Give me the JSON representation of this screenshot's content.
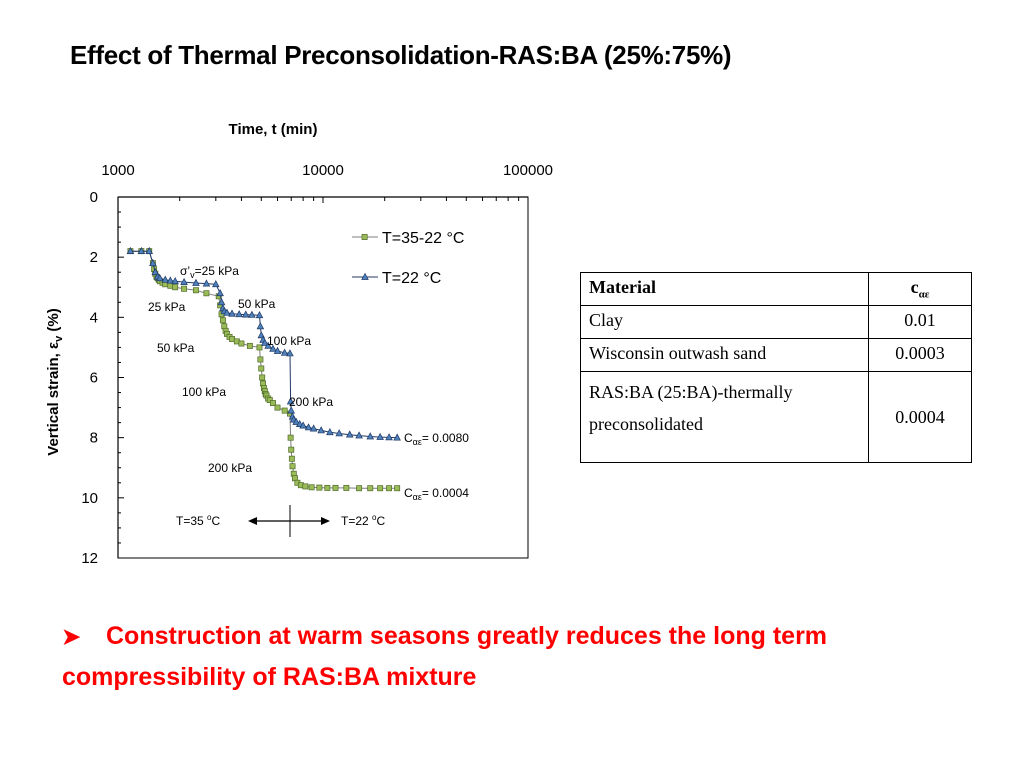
{
  "slide": {
    "title": "Effect of Thermal Preconsolidation-RAS:BA (25%:75%)",
    "bullet_icon": "arrowhead-bullet-icon",
    "bullet_text": "Construction at warm seasons greatly reduces the long term compressibility of RAS:BA mixture",
    "bullet_color": "#ff0000"
  },
  "table": {
    "headers": [
      "Material",
      "c"
    ],
    "header_subscript": "αε",
    "rows": [
      [
        "Clay",
        "0.01"
      ],
      [
        "Wisconsin outwash sand",
        "0.0003"
      ],
      [
        "RAS:BA (25:BA)-thermally preconsolidated",
        "0.0004"
      ]
    ]
  },
  "chart_data": {
    "type": "scatter",
    "xlabel": "Time, t (min)",
    "ylabel": "Vertical strain, εv (%)",
    "xscale": "log",
    "xlim": [
      1000,
      100000
    ],
    "ylim": [
      0,
      12
    ],
    "y_reversed": true,
    "x_axis_position": "top",
    "x_ticks": [
      "1000",
      "10000",
      "100000"
    ],
    "y_ticks": [
      "0",
      "2",
      "4",
      "6",
      "8",
      "10",
      "12"
    ],
    "grid": false,
    "legend_position": "top-right",
    "series": [
      {
        "name": "T=35-22 °C",
        "marker": "square",
        "color": "#9bbb59",
        "line_color": "#7f7f7f",
        "x": [
          1150,
          1300,
          1420,
          1480,
          1500,
          1520,
          1540,
          1560,
          1580,
          1600,
          1650,
          1700,
          1800,
          1900,
          2100,
          2400,
          2700,
          3100,
          3150,
          3200,
          3250,
          3300,
          3350,
          3400,
          3500,
          3600,
          3800,
          4000,
          4400,
          4900,
          4950,
          5000,
          5050,
          5100,
          5150,
          5200,
          5250,
          5300,
          5400,
          5500,
          5700,
          6000,
          6500,
          6900,
          6950,
          7000,
          7050,
          7100,
          7200,
          7300,
          7500,
          7800,
          8200,
          8800,
          9600,
          10500,
          11500,
          13000,
          15000,
          17000,
          19000,
          21000,
          23000
        ],
        "y": [
          1.8,
          1.8,
          1.8,
          2.2,
          2.4,
          2.55,
          2.65,
          2.7,
          2.75,
          2.8,
          2.85,
          2.9,
          2.95,
          3.0,
          3.05,
          3.1,
          3.2,
          3.3,
          3.6,
          3.9,
          4.1,
          4.3,
          4.45,
          4.55,
          4.65,
          4.72,
          4.8,
          4.87,
          4.95,
          5.0,
          5.4,
          5.7,
          6.0,
          6.2,
          6.35,
          6.45,
          6.55,
          6.6,
          6.7,
          6.75,
          6.85,
          7.0,
          7.1,
          7.2,
          8.0,
          8.4,
          8.7,
          8.95,
          9.2,
          9.35,
          9.5,
          9.58,
          9.62,
          9.65,
          9.66,
          9.67,
          9.67,
          9.67,
          9.68,
          9.68,
          9.68,
          9.68,
          9.68
        ]
      },
      {
        "name": "T=22 °C",
        "marker": "triangle",
        "color": "#4f81bd",
        "line_color": "#1f3864",
        "x": [
          1150,
          1300,
          1420,
          1480,
          1520,
          1560,
          1600,
          1700,
          1800,
          1900,
          2100,
          2400,
          2700,
          3000,
          3150,
          3200,
          3250,
          3300,
          3400,
          3600,
          3900,
          4200,
          4500,
          4900,
          4950,
          5000,
          5100,
          5200,
          5400,
          5700,
          6000,
          6500,
          6900,
          6950,
          7000,
          7100,
          7200,
          7400,
          7700,
          8000,
          8500,
          9000,
          9800,
          10800,
          12000,
          13500,
          15000,
          17000,
          19000,
          21000,
          23000
        ],
        "y": [
          1.8,
          1.8,
          1.8,
          2.2,
          2.5,
          2.65,
          2.7,
          2.75,
          2.78,
          2.8,
          2.83,
          2.86,
          2.88,
          2.9,
          3.2,
          3.5,
          3.7,
          3.8,
          3.85,
          3.88,
          3.9,
          3.91,
          3.92,
          3.93,
          4.3,
          4.6,
          4.75,
          4.85,
          4.95,
          5.05,
          5.12,
          5.18,
          5.2,
          6.8,
          7.1,
          7.3,
          7.4,
          7.48,
          7.55,
          7.6,
          7.66,
          7.7,
          7.76,
          7.82,
          7.86,
          7.9,
          7.93,
          7.96,
          7.98,
          7.99,
          8.0
        ]
      }
    ],
    "annotations": [
      "σ'v=25 kPa",
      "25 kPa",
      "50 kPa",
      "50 kPa",
      "100 kPa",
      "100 kPa",
      "200 kPa",
      "200 kPa",
      "Cαε= 0.0080",
      "Cαε= 0.0004",
      "T=35 oC",
      "T=22 oC"
    ]
  }
}
